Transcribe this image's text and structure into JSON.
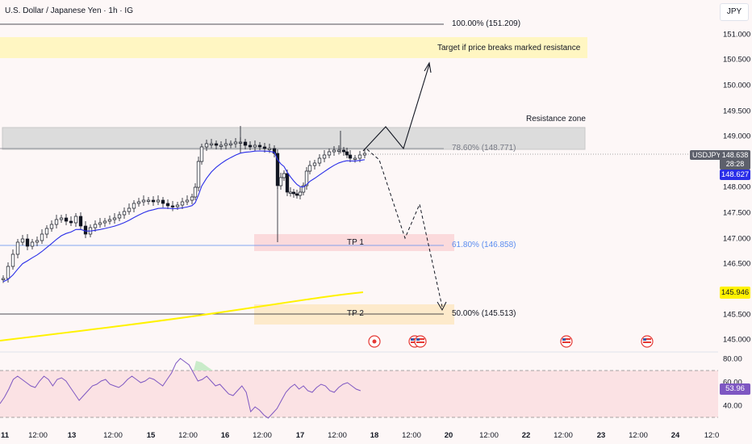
{
  "header": {
    "title": "U.S. Dollar / Japanese Yen · 1h · IG"
  },
  "currency_button": "JPY",
  "price_axis": [
    "151.000",
    "150.500",
    "150.000",
    "149.500",
    "149.000",
    "148.000",
    "147.500",
    "147.000",
    "146.500",
    "145.500",
    "145.000"
  ],
  "rsi_axis": [
    "80.00",
    "60.00",
    "40.00"
  ],
  "time_axis": [
    {
      "label": "11",
      "bold": true
    },
    {
      "label": "12:00",
      "bold": false
    },
    {
      "label": "13",
      "bold": true
    },
    {
      "label": "12:00",
      "bold": false
    },
    {
      "label": "15",
      "bold": true
    },
    {
      "label": "12:00",
      "bold": false
    },
    {
      "label": "16",
      "bold": true
    },
    {
      "label": "12:00",
      "bold": false
    },
    {
      "label": "17",
      "bold": true
    },
    {
      "label": "12:00",
      "bold": false
    },
    {
      "label": "18",
      "bold": true
    },
    {
      "label": "12:00",
      "bold": false
    },
    {
      "label": "20",
      "bold": true
    },
    {
      "label": "12:00",
      "bold": false
    },
    {
      "label": "22",
      "bold": true
    },
    {
      "label": "12:00",
      "bold": false
    },
    {
      "label": "23",
      "bold": true
    },
    {
      "label": "12:00",
      "bold": false
    },
    {
      "label": "24",
      "bold": true
    },
    {
      "label": "12:0",
      "bold": false
    }
  ],
  "symbol_label": "USDJPY",
  "last_price": {
    "price": "148.638",
    "countdown": "28:28"
  },
  "ma_value": "148.627",
  "ema_value": "145.946",
  "rsi_value": "53.96",
  "fib_levels": [
    {
      "label": "100.00% (151.209)",
      "color": "#131722"
    },
    {
      "label": "78.60% (148.771)",
      "color": "#787b86"
    },
    {
      "label": "61.80% (146.858)",
      "color": "#5b8def"
    },
    {
      "label": "50.00% (145.513)",
      "color": "#131722"
    }
  ],
  "annotations": {
    "target": "Target if price breaks marked resistance",
    "resistance": "Resistance zone",
    "tp1": "TP 1",
    "tp2": "TP 2"
  },
  "colors": {
    "background": "#fdf7f7",
    "target_zone": "#fff6c2",
    "resistance_zone": "#dcdcdc",
    "tp1_zone": "#fbdadc",
    "tp2_zone": "#fdeacb",
    "ma_line": "#2a2ee8",
    "ema_line": "#fff200",
    "rsi_line": "#7e57c2",
    "rsi_band": "#fbe2e4",
    "candle": "#131722"
  },
  "event_icons": [
    "flag-circle-icon",
    "us-flag-icon",
    "us-flag-icon",
    "us-flag-icon",
    "us-flag-icon"
  ]
}
